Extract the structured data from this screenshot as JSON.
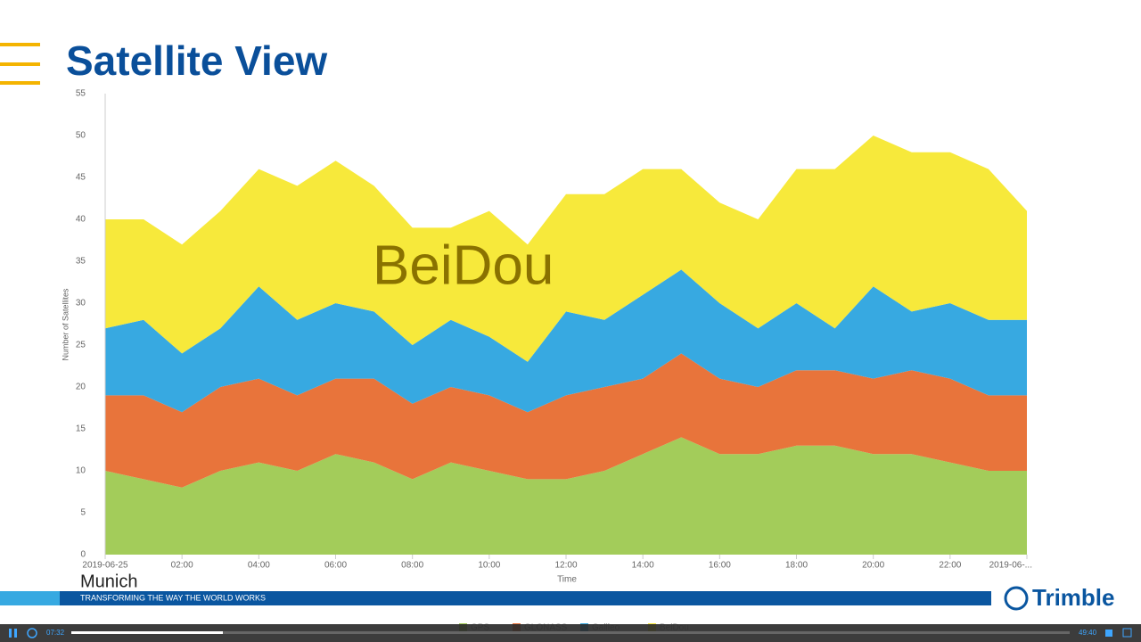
{
  "header": {
    "title": "Satellite View"
  },
  "chart_data": {
    "type": "stacked-area",
    "annotation": "BeiDou",
    "x_label": "Time",
    "y_label": "Number of Satellites",
    "x": [
      0,
      1,
      2,
      3,
      4,
      5,
      6,
      7,
      8,
      9,
      10,
      11,
      12,
      13,
      14,
      15,
      16,
      17,
      18,
      19,
      20,
      21,
      22,
      23,
      24
    ],
    "xlim": [
      0,
      24
    ],
    "xticks": [
      {
        "value": 0,
        "label": "2019-06-25"
      },
      {
        "value": 2,
        "label": "02:00"
      },
      {
        "value": 4,
        "label": "04:00"
      },
      {
        "value": 6,
        "label": "06:00"
      },
      {
        "value": 8,
        "label": "08:00"
      },
      {
        "value": 10,
        "label": "10:00"
      },
      {
        "value": 12,
        "label": "12:00"
      },
      {
        "value": 14,
        "label": "14:00"
      },
      {
        "value": 16,
        "label": "16:00"
      },
      {
        "value": 18,
        "label": "18:00"
      },
      {
        "value": 20,
        "label": "20:00"
      },
      {
        "value": 22,
        "label": "22:00"
      },
      {
        "value": 24,
        "label": "2019-06-..."
      }
    ],
    "ylim": [
      0,
      55
    ],
    "yticks": [
      0,
      5,
      10,
      15,
      20,
      25,
      30,
      35,
      40,
      45,
      50,
      55
    ],
    "series": [
      {
        "name": "GPS",
        "color": "#a3cc5a",
        "values": [
          10,
          9,
          8,
          10,
          11,
          10,
          12,
          11,
          9,
          11,
          10,
          9,
          9,
          10,
          12,
          14,
          12,
          12,
          13,
          13,
          12,
          12,
          11,
          10,
          10
        ]
      },
      {
        "name": "GLONASS",
        "color": "#e8743b",
        "values": [
          9,
          10,
          9,
          10,
          10,
          9,
          9,
          10,
          9,
          9,
          9,
          8,
          10,
          10,
          9,
          10,
          9,
          8,
          9,
          9,
          9,
          10,
          10,
          9,
          9
        ]
      },
      {
        "name": "Galileo",
        "color": "#37a9e1",
        "values": [
          8,
          9,
          7,
          7,
          11,
          9,
          9,
          8,
          7,
          8,
          7,
          6,
          10,
          8,
          10,
          10,
          9,
          7,
          8,
          5,
          11,
          7,
          9,
          9,
          9
        ]
      },
      {
        "name": "BeiDou",
        "color": "#f7e93b",
        "values": [
          13,
          12,
          13,
          14,
          14,
          16,
          17,
          15,
          14,
          11,
          15,
          14,
          14,
          15,
          15,
          12,
          12,
          13,
          16,
          19,
          18,
          19,
          18,
          18,
          13
        ]
      }
    ]
  },
  "footer": {
    "location": "Munich",
    "tagline": "TRANSFORMING THE WAY THE WORLD WORKS",
    "brand": "Trimble"
  },
  "player": {
    "elapsed": "07:32",
    "duration": "49:40"
  }
}
